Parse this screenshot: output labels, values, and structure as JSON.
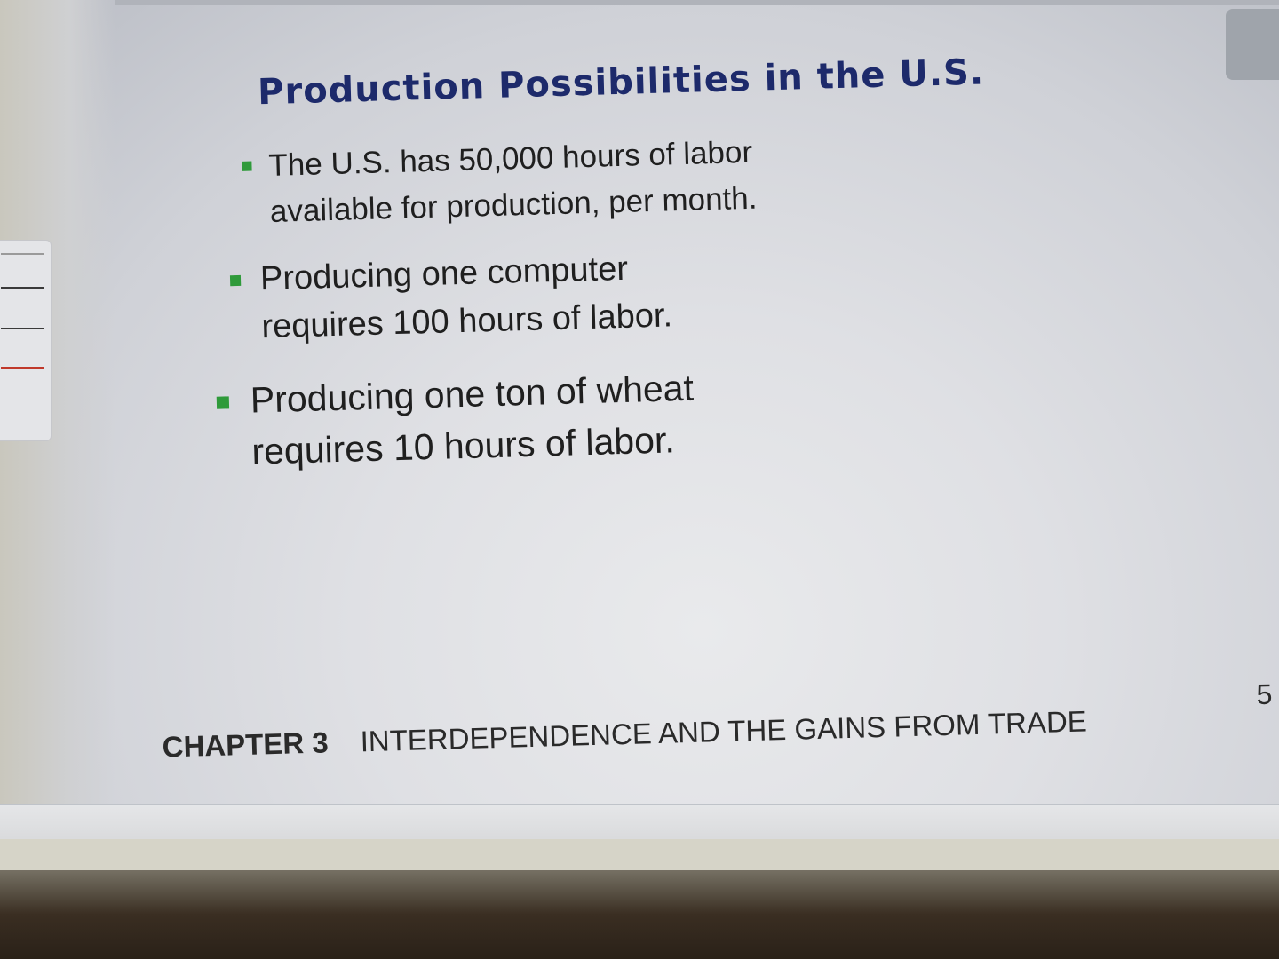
{
  "slide": {
    "title": "Production Possibilities in the U.S.",
    "bullets": [
      {
        "lines": [
          "The U.S. has 50,000 hours of labor",
          "available for production, per month."
        ]
      },
      {
        "lines": [
          "Producing one computer",
          "requires 100 hours of labor."
        ]
      },
      {
        "lines": [
          "Producing one ton of wheat",
          "requires 10 hours of labor."
        ]
      }
    ],
    "footer": {
      "chapter": "CHAPTER 3",
      "chapter_title": "INTERDEPENDENCE AND THE GAINS FROM TRADE"
    },
    "page_number": "5"
  },
  "colors": {
    "title": "#1d2a6b",
    "bullet_marker": "#2f9a3a",
    "body_text": "#1f1f1f"
  }
}
